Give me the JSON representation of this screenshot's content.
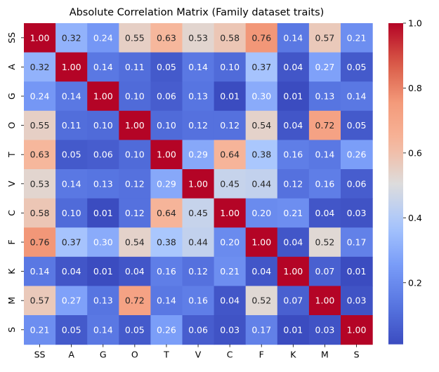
{
  "chart_data": {
    "type": "heatmap",
    "title": "Absolute Correlation Matrix (Family dataset traits)",
    "xlabel": "",
    "ylabel": "",
    "x_categories": [
      "SS",
      "A",
      "G",
      "O",
      "T",
      "V",
      "C",
      "F",
      "K",
      "M",
      "S"
    ],
    "y_categories": [
      "SS",
      "A",
      "G",
      "O",
      "T",
      "V",
      "C",
      "F",
      "K",
      "M",
      "S"
    ],
    "values": [
      [
        1.0,
        0.32,
        0.24,
        0.55,
        0.63,
        0.53,
        0.58,
        0.76,
        0.14,
        0.57,
        0.21
      ],
      [
        0.32,
        1.0,
        0.14,
        0.11,
        0.05,
        0.14,
        0.1,
        0.37,
        0.04,
        0.27,
        0.05
      ],
      [
        0.24,
        0.14,
        1.0,
        0.1,
        0.06,
        0.13,
        0.01,
        0.3,
        0.01,
        0.13,
        0.14
      ],
      [
        0.55,
        0.11,
        0.1,
        1.0,
        0.1,
        0.12,
        0.12,
        0.54,
        0.04,
        0.72,
        0.05
      ],
      [
        0.63,
        0.05,
        0.06,
        0.1,
        1.0,
        0.29,
        0.64,
        0.38,
        0.16,
        0.14,
        0.26
      ],
      [
        0.53,
        0.14,
        0.13,
        0.12,
        0.29,
        1.0,
        0.45,
        0.44,
        0.12,
        0.16,
        0.06
      ],
      [
        0.58,
        0.1,
        0.01,
        0.12,
        0.64,
        0.45,
        1.0,
        0.2,
        0.21,
        0.04,
        0.03
      ],
      [
        0.76,
        0.37,
        0.3,
        0.54,
        0.38,
        0.44,
        0.2,
        1.0,
        0.04,
        0.52,
        0.17
      ],
      [
        0.14,
        0.04,
        0.01,
        0.04,
        0.16,
        0.12,
        0.21,
        0.04,
        1.0,
        0.07,
        0.01
      ],
      [
        0.57,
        0.27,
        0.13,
        0.72,
        0.14,
        0.16,
        0.04,
        0.52,
        0.07,
        1.0,
        0.03
      ],
      [
        0.21,
        0.05,
        0.14,
        0.05,
        0.26,
        0.06,
        0.03,
        0.17,
        0.01,
        0.03,
        1.0
      ]
    ],
    "value_format": "0.00",
    "colormap": "coolwarm",
    "color_range": [
      0.01,
      1.0
    ],
    "colorbar_ticks": [
      "0.2",
      "0.4",
      "0.6",
      "0.8",
      "1.0"
    ],
    "colors": {
      "low": "#3b4cc0",
      "high": "#b40426",
      "text_dark": "#262626",
      "text_light": "#ffffff"
    },
    "grid": false,
    "legend": "colorbar-right"
  }
}
